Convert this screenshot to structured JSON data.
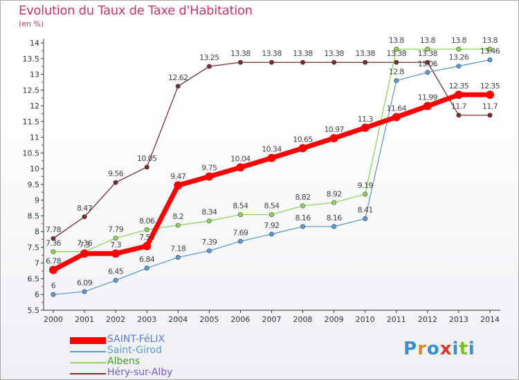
{
  "header": {
    "title": "Evolution du Taux de Taxe d'Habitation",
    "subtitle": "(en %)"
  },
  "logo": {
    "text": "Proxiti"
  },
  "chart_data": {
    "type": "line",
    "title": "Evolution du Taux de Taxe d'Habitation",
    "ylabel": "(en %)",
    "x": [
      "2000",
      "2001",
      "2002",
      "2003",
      "2004",
      "2005",
      "2006",
      "2007",
      "2008",
      "2009",
      "2010",
      "2011",
      "2012",
      "2013",
      "2014"
    ],
    "ylim": [
      5.5,
      14
    ],
    "yticks": [
      "5.5",
      "6",
      "6.5",
      "7",
      "7.5",
      "8",
      "8.5",
      "9",
      "9.5",
      "10",
      "10.5",
      "11",
      "11.5",
      "12",
      "12.5",
      "13",
      "13.5",
      "14"
    ],
    "grid": false,
    "legend_position": "bottom-left",
    "series": [
      {
        "name": "SAINT-FéLIX",
        "color": "#ff0000",
        "values": [
          6.78,
          7.3,
          7.3,
          7.54,
          9.47,
          9.75,
          10.04,
          10.34,
          10.65,
          10.97,
          11.3,
          11.64,
          11.99,
          12.35,
          12.35
        ],
        "labels": [
          "6.78",
          "7.3",
          "7.3",
          "7.54",
          "9.47",
          "9.75",
          "10.04",
          "10.34",
          "10.65",
          "10.97",
          "11.3",
          "11.64",
          "11.99",
          "12.35",
          "12.35"
        ]
      },
      {
        "name": "Saint-Girod",
        "color": "#5b9bd5",
        "values": [
          6,
          6.09,
          6.45,
          6.84,
          7.18,
          7.39,
          7.69,
          7.92,
          8.16,
          8.16,
          8.41,
          12.8,
          13.06,
          13.26,
          13.46
        ],
        "labels": [
          "6",
          "6.09",
          "6.45",
          "6.84",
          "7.18",
          "7.39",
          "7.69",
          "7.92",
          "8.16",
          "8.16",
          "8.41",
          "12.8",
          "13.06",
          "13.26",
          "13.46"
        ]
      },
      {
        "name": "Albens",
        "color": "#8ed55a",
        "values": [
          7.36,
          7.36,
          7.79,
          8.06,
          8.2,
          8.34,
          8.54,
          8.54,
          8.82,
          8.92,
          9.19,
          13.8,
          13.8,
          13.8,
          13.8
        ],
        "labels": [
          "7.36",
          "7.36",
          "7.79",
          "8.06",
          "8.2",
          "8.34",
          "8.54",
          "8.54",
          "8.82",
          "8.92",
          "9.19",
          "13.8",
          "13.8",
          "13.8",
          "13.8"
        ]
      },
      {
        "name": "Héry-sur-Alby",
        "color": "#7a2b2b",
        "values": [
          7.78,
          8.47,
          9.56,
          10.05,
          12.62,
          13.25,
          13.38,
          13.38,
          13.38,
          13.38,
          13.38,
          13.38,
          13.38,
          11.7,
          11.7
        ],
        "labels": [
          "7.78",
          "8.47",
          "9.56",
          "10.05",
          "12.62",
          "13.25",
          "13.38",
          "13.38",
          "13.38",
          "13.38",
          "13.38",
          "13.38",
          "13.38",
          "11.7",
          "11.7"
        ]
      }
    ]
  }
}
